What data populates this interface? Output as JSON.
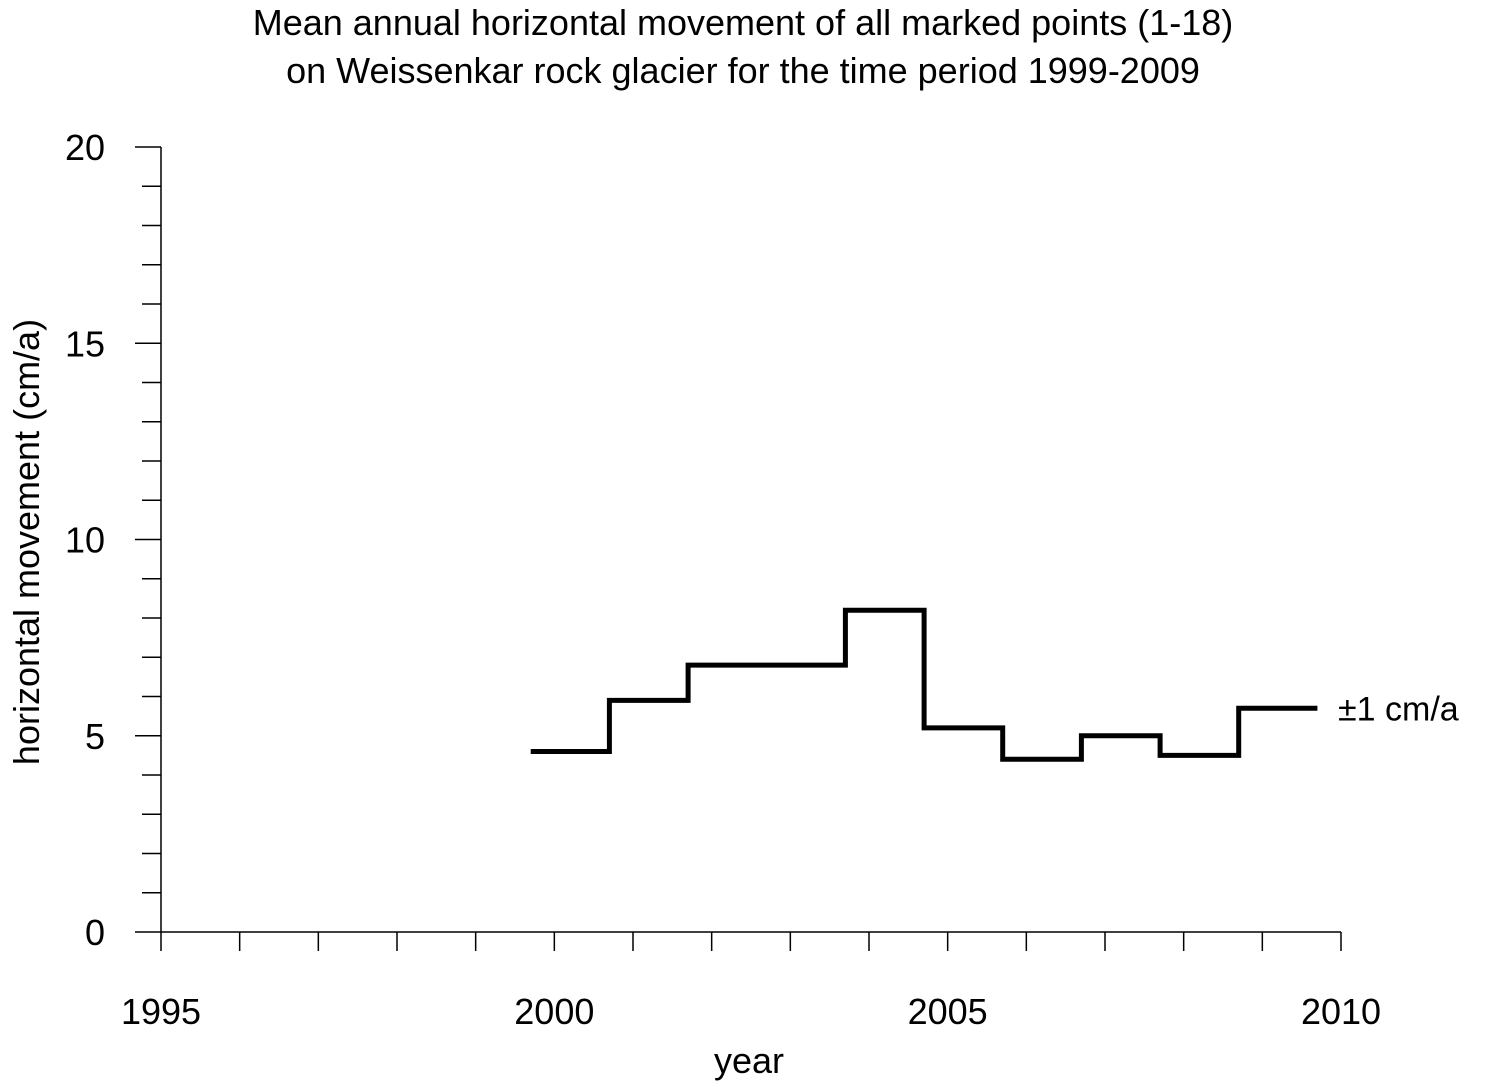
{
  "chart_data": {
    "type": "line",
    "title_line1": "Mean annual horizontal movement of all marked points (1-18)",
    "title_line2": "on Weissenkar rock glacier for the time period 1999-2009",
    "xlabel": "year",
    "ylabel": "horizontal movement (cm/a)",
    "xlim": [
      1995,
      2010
    ],
    "ylim": [
      0,
      20
    ],
    "x_ticks": [
      1995,
      2000,
      2005,
      2010
    ],
    "y_ticks": [
      0,
      5,
      10,
      15,
      20
    ],
    "grid": false,
    "step_segments": [
      {
        "start": 1999.7,
        "end": 2000.7,
        "value": 4.6
      },
      {
        "start": 2000.7,
        "end": 2001.7,
        "value": 5.9
      },
      {
        "start": 2001.7,
        "end": 2003.7,
        "value": 6.8
      },
      {
        "start": 2003.7,
        "end": 2004.7,
        "value": 8.2
      },
      {
        "start": 2004.7,
        "end": 2005.7,
        "value": 5.2
      },
      {
        "start": 2005.7,
        "end": 2006.7,
        "value": 4.4
      },
      {
        "start": 2006.7,
        "end": 2007.7,
        "value": 5.0
      },
      {
        "start": 2007.7,
        "end": 2008.7,
        "value": 4.5
      },
      {
        "start": 2008.7,
        "end": 2009.7,
        "value": 5.7
      }
    ],
    "annotation": "±1 cm/a",
    "line_color": "#000000"
  }
}
